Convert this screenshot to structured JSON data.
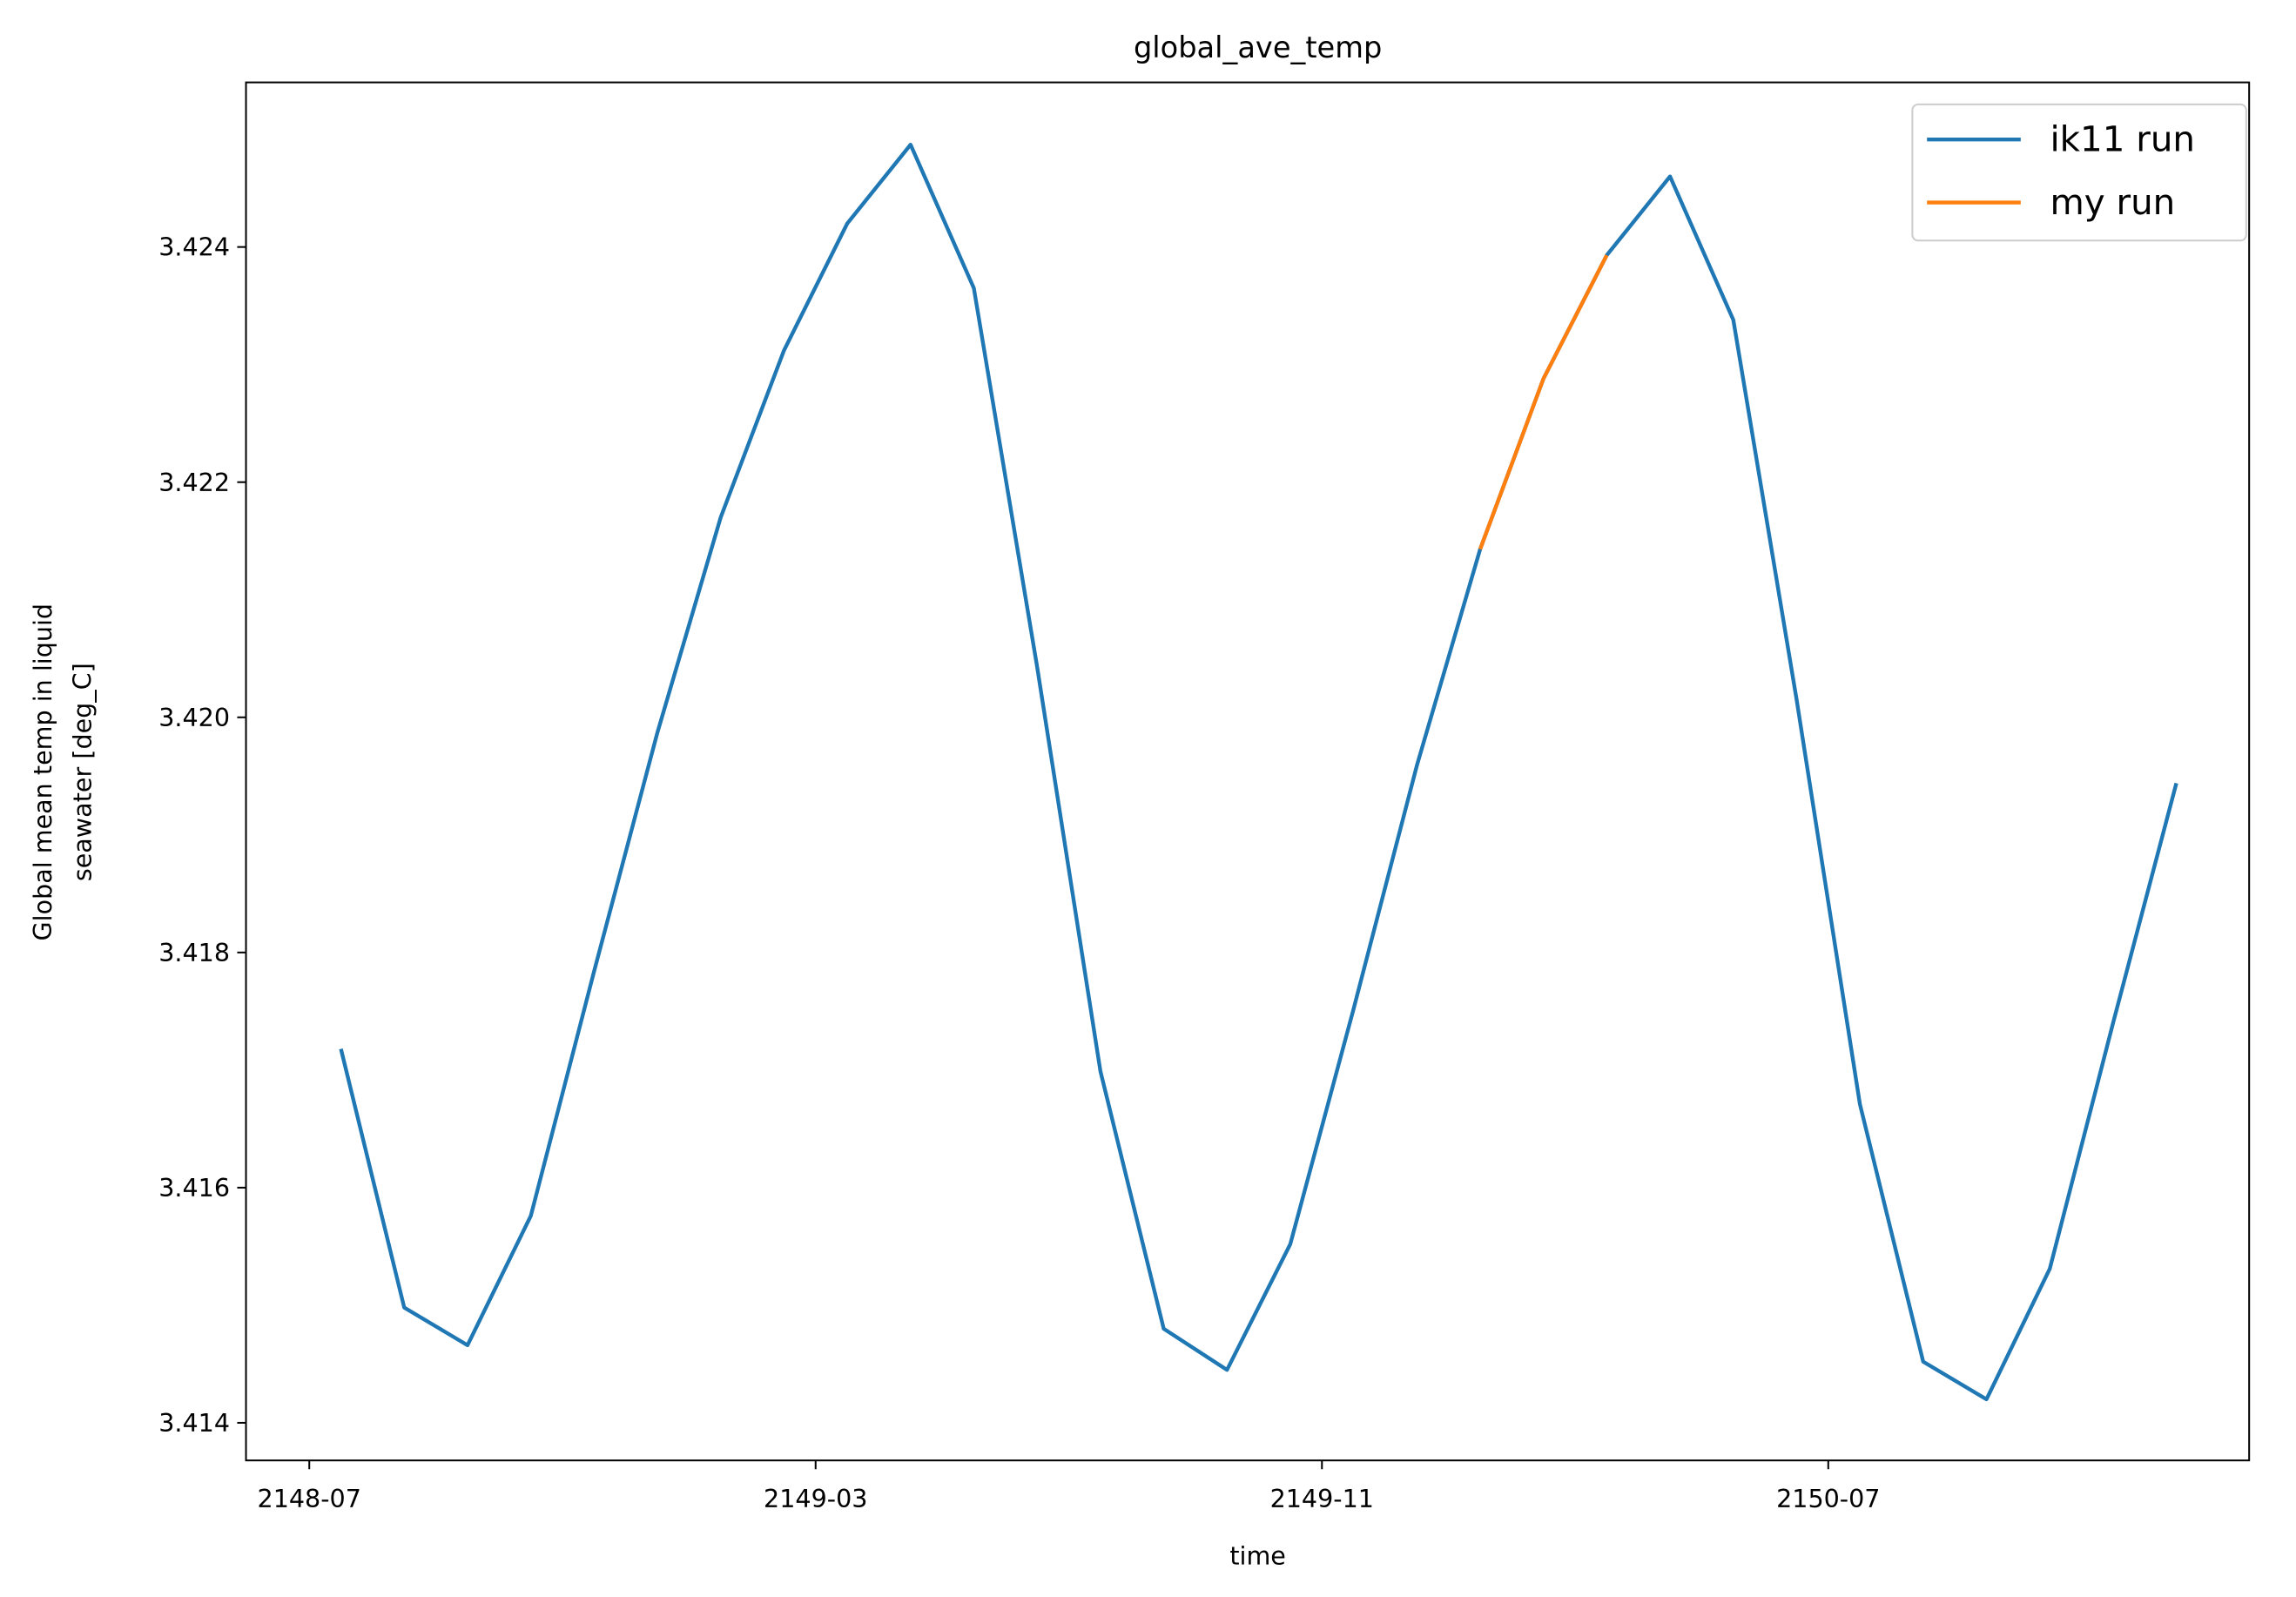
{
  "chart_data": {
    "type": "line",
    "title": "global_ave_temp",
    "xlabel": "time",
    "ylabel": [
      "Global mean temp in liquid",
      "seawater [deg_C]"
    ],
    "xlim": [
      "2148-06",
      "2151-01"
    ],
    "xticks": [
      "2148-07",
      "2149-03",
      "2149-11",
      "2150-07"
    ],
    "ylim": [
      3.41368,
      3.4254
    ],
    "yticks": [
      3.414,
      3.416,
      3.418,
      {
        "value": 3.42,
        "label": "3.420"
      },
      3.422,
      3.424
    ],
    "legend": "upper right",
    "series": [
      {
        "name": "ik11 run",
        "color": "#1f77b4",
        "x": [
          "2148-07",
          "2148-08",
          "2148-09",
          "2148-10",
          "2148-11",
          "2148-12",
          "2149-01",
          "2149-02",
          "2149-03",
          "2149-04",
          "2149-05",
          "2149-06",
          "2149-07",
          "2149-08",
          "2149-09",
          "2149-10",
          "2149-11",
          "2149-12",
          "2150-01",
          "2150-02",
          "2150-03",
          "2150-04",
          "2150-05",
          "2150-06",
          "2150-07",
          "2150-08",
          "2150-09",
          "2150-10",
          "2150-11",
          "2150-12"
        ],
        "values": [
          3.41718,
          3.41498,
          3.41466,
          3.41576,
          3.41784,
          3.41987,
          3.4217,
          3.42312,
          3.4242,
          3.42487,
          3.42365,
          3.42043,
          3.41699,
          3.4148,
          3.41445,
          3.41552,
          3.41752,
          3.41959,
          3.42143,
          3.42288,
          3.42393,
          3.4246,
          3.42338,
          3.42015,
          3.41671,
          3.41452,
          3.4142,
          3.41531,
          3.4174,
          3.41944
        ]
      },
      {
        "name": "my run",
        "color": "#ff7f0e",
        "x": [
          "2150-01",
          "2150-02",
          "2150-03"
        ],
        "values": [
          3.42143,
          3.42288,
          3.42393
        ]
      }
    ]
  }
}
